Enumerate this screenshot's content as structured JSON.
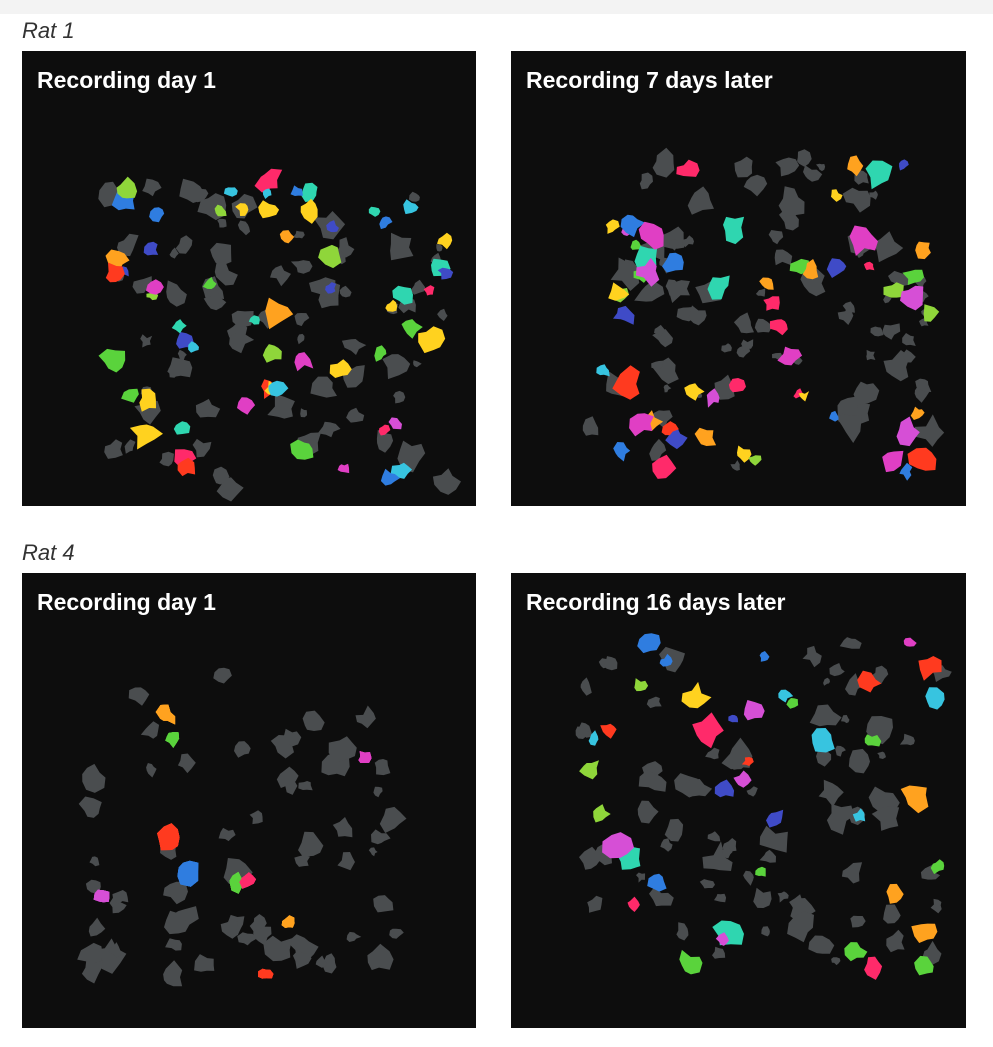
{
  "rats": [
    {
      "label": "Rat 1",
      "panels": [
        {
          "title": "Recording day 1"
        },
        {
          "title": "Recording 7 days later"
        }
      ]
    },
    {
      "label": "Rat 4",
      "panels": [
        {
          "title": "Recording day 1"
        },
        {
          "title": "Recording 16 days later"
        }
      ]
    }
  ],
  "colors": {
    "panel_background": "#0d0d0d",
    "inactive_cell": "#4a4d4f",
    "active_cell_palette": [
      "#e03fc4",
      "#2f7de0",
      "#37c4e0",
      "#5ad33c",
      "#8fd63a",
      "#ff3a1f",
      "#ffd21f",
      "#ff2a6a",
      "#3f4bc7",
      "#d64fd6",
      "#2fd6b0",
      "#ffa21f"
    ]
  }
}
